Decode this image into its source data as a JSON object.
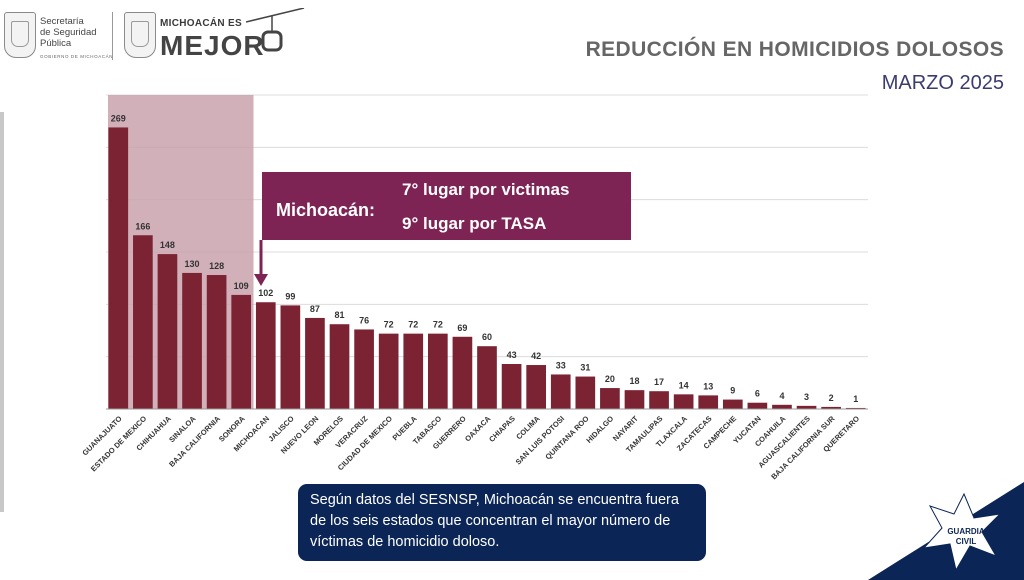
{
  "header": {
    "secretaria": [
      "Secretaría",
      "de Seguridad",
      "Pública"
    ],
    "gobierno": "GOBIERNO DE MICHOACÁN",
    "brand_small": "MICHOACÁN ES",
    "brand_big": "MEJOR"
  },
  "title": "REDUCCIÓN EN HOMICIDIOS DOLOSOS",
  "subtitle": "MARZO 2025",
  "callout": {
    "label": "Michoacán:",
    "line1": "7° lugar por victimas",
    "line2": "9° lugar por TASA"
  },
  "info_text": "Según datos del SESNSP, Michoacán se encuentra fuera de los seis estados que concentran el mayor número de víctimas de homicidio doloso.",
  "badge": {
    "line1": "GUARDIA",
    "line2": "CIVIL"
  },
  "colors": {
    "bar": "#7b2233",
    "highlight": "#c9a2ad",
    "callout": "#7d2455",
    "infobox": "#0b2556",
    "corner": "#0b2556"
  },
  "chart_data": {
    "type": "bar",
    "categories": [
      "GUANAJUATO",
      "ESTADO DE MEXICO",
      "CHIHUAHUA",
      "SINALOA",
      "BAJA CALIFORNIA",
      "SONORA",
      "MICHOACAN",
      "JALISCO",
      "NUEVO LEON",
      "MORELOS",
      "VERACRUZ",
      "CIUDAD DE MEXICO",
      "PUEBLA",
      "TABASCO",
      "GUERRERO",
      "OAXACA",
      "CHIAPAS",
      "COLIMA",
      "SAN LUIS POTOSI",
      "QUINTANA ROO",
      "HIDALGO",
      "NAYARIT",
      "TAMAULIPAS",
      "TLAXCALA",
      "ZACATECAS",
      "CAMPECHE",
      "YUCATAN",
      "COAHUILA",
      "AGUASCALIENTES",
      "BAJA CALIFORNIA SUR",
      "QUERETARO"
    ],
    "values": [
      269,
      166,
      148,
      130,
      128,
      109,
      102,
      99,
      87,
      81,
      76,
      72,
      72,
      72,
      69,
      60,
      43,
      42,
      33,
      31,
      20,
      18,
      17,
      14,
      13,
      9,
      6,
      4,
      3,
      2,
      1
    ],
    "ylim": [
      0,
      300
    ],
    "highlighted_top": 6,
    "grid": true,
    "xlabel": "",
    "ylabel": ""
  }
}
